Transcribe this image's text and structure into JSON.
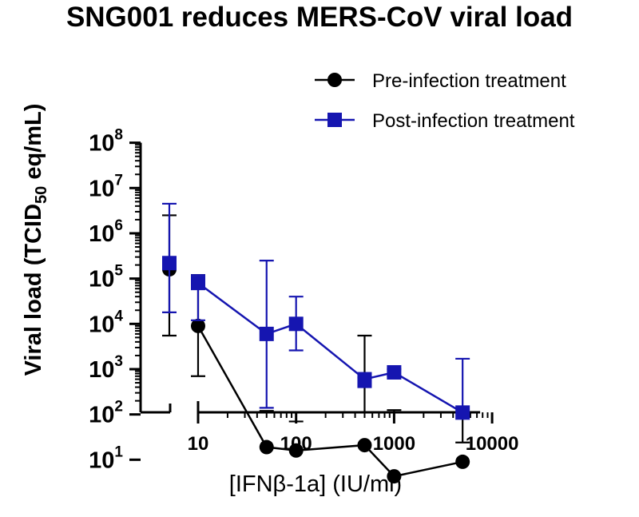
{
  "chart_data": {
    "type": "line",
    "title": "SNG001 reduces MERS-CoV viral load",
    "xlabel": "[IFNβ-1a] (IU/ml)",
    "ylabel": {
      "prefix": "Viral load (TCID",
      "subscript": "50",
      "suffix": " eq/mL)"
    },
    "xscale": "log",
    "yscale": "log",
    "xlim": [
      3,
      7000
    ],
    "ylim": [
      1,
      100000000
    ],
    "x_axis_break": {
      "between": [
        5,
        10
      ]
    },
    "x_ticks": [
      {
        "value": 10,
        "label": "10"
      },
      {
        "value": 100,
        "label": "100"
      },
      {
        "value": 1000,
        "label": "1000"
      },
      {
        "value": 10000,
        "label": "10000"
      }
    ],
    "y_ticks": [
      {
        "value": 10,
        "base": "10",
        "exp": "1"
      },
      {
        "value": 100,
        "base": "10",
        "exp": "2"
      },
      {
        "value": 1000,
        "base": "10",
        "exp": "3"
      },
      {
        "value": 10000,
        "base": "10",
        "exp": "4"
      },
      {
        "value": 100000,
        "base": "10",
        "exp": "5"
      },
      {
        "value": 1000000,
        "base": "10",
        "exp": "6"
      },
      {
        "value": 10000000,
        "base": "10",
        "exp": "7"
      },
      {
        "value": 100000000,
        "base": "10",
        "exp": "8"
      }
    ],
    "legend_position": "top-right",
    "series": [
      {
        "name": "Pre-infection treatment",
        "color": "#000000",
        "marker": "circle",
        "points": [
          {
            "x": 5,
            "y": 160000,
            "lo": 5500,
            "hi": 2500000,
            "connected": false
          },
          {
            "x": 10,
            "y": 9000,
            "lo": 700,
            "hi": 120000,
            "connected": true
          },
          {
            "x": 50,
            "y": 19,
            "lo": 3.2,
            "hi": 120,
            "connected": true
          },
          {
            "x": 100,
            "y": 16,
            "lo": 3.9,
            "hi": 70,
            "connected": true
          },
          {
            "x": 500,
            "y": 21,
            "lo": 1,
            "hi": 5500,
            "connected": true
          },
          {
            "x": 1000,
            "y": 4.3,
            "lo": 1,
            "hi": 125,
            "connected": true
          },
          {
            "x": 5000,
            "y": 9,
            "lo": 3.3,
            "hi": 24,
            "connected": true
          }
        ]
      },
      {
        "name": "Post-infection treatment",
        "color": "#1515b0",
        "marker": "square",
        "points": [
          {
            "x": 5,
            "y": 220000,
            "lo": 18000,
            "hi": 4500000,
            "connected": false
          },
          {
            "x": 10,
            "y": 80000,
            "lo": 12000,
            "hi": 120000,
            "connected": true
          },
          {
            "x": 50,
            "y": 6000,
            "lo": 140,
            "hi": 250000,
            "connected": true
          },
          {
            "x": 100,
            "y": 10000,
            "lo": 2600,
            "hi": 40000,
            "connected": true
          },
          {
            "x": 500,
            "y": 600,
            "lo": 400,
            "hi": 650,
            "connected": true
          },
          {
            "x": 1000,
            "y": 850,
            "lo": 700,
            "hi": 1000,
            "connected": true
          },
          {
            "x": 5000,
            "y": 110,
            "lo": 8,
            "hi": 1700,
            "connected": true
          }
        ]
      }
    ]
  }
}
